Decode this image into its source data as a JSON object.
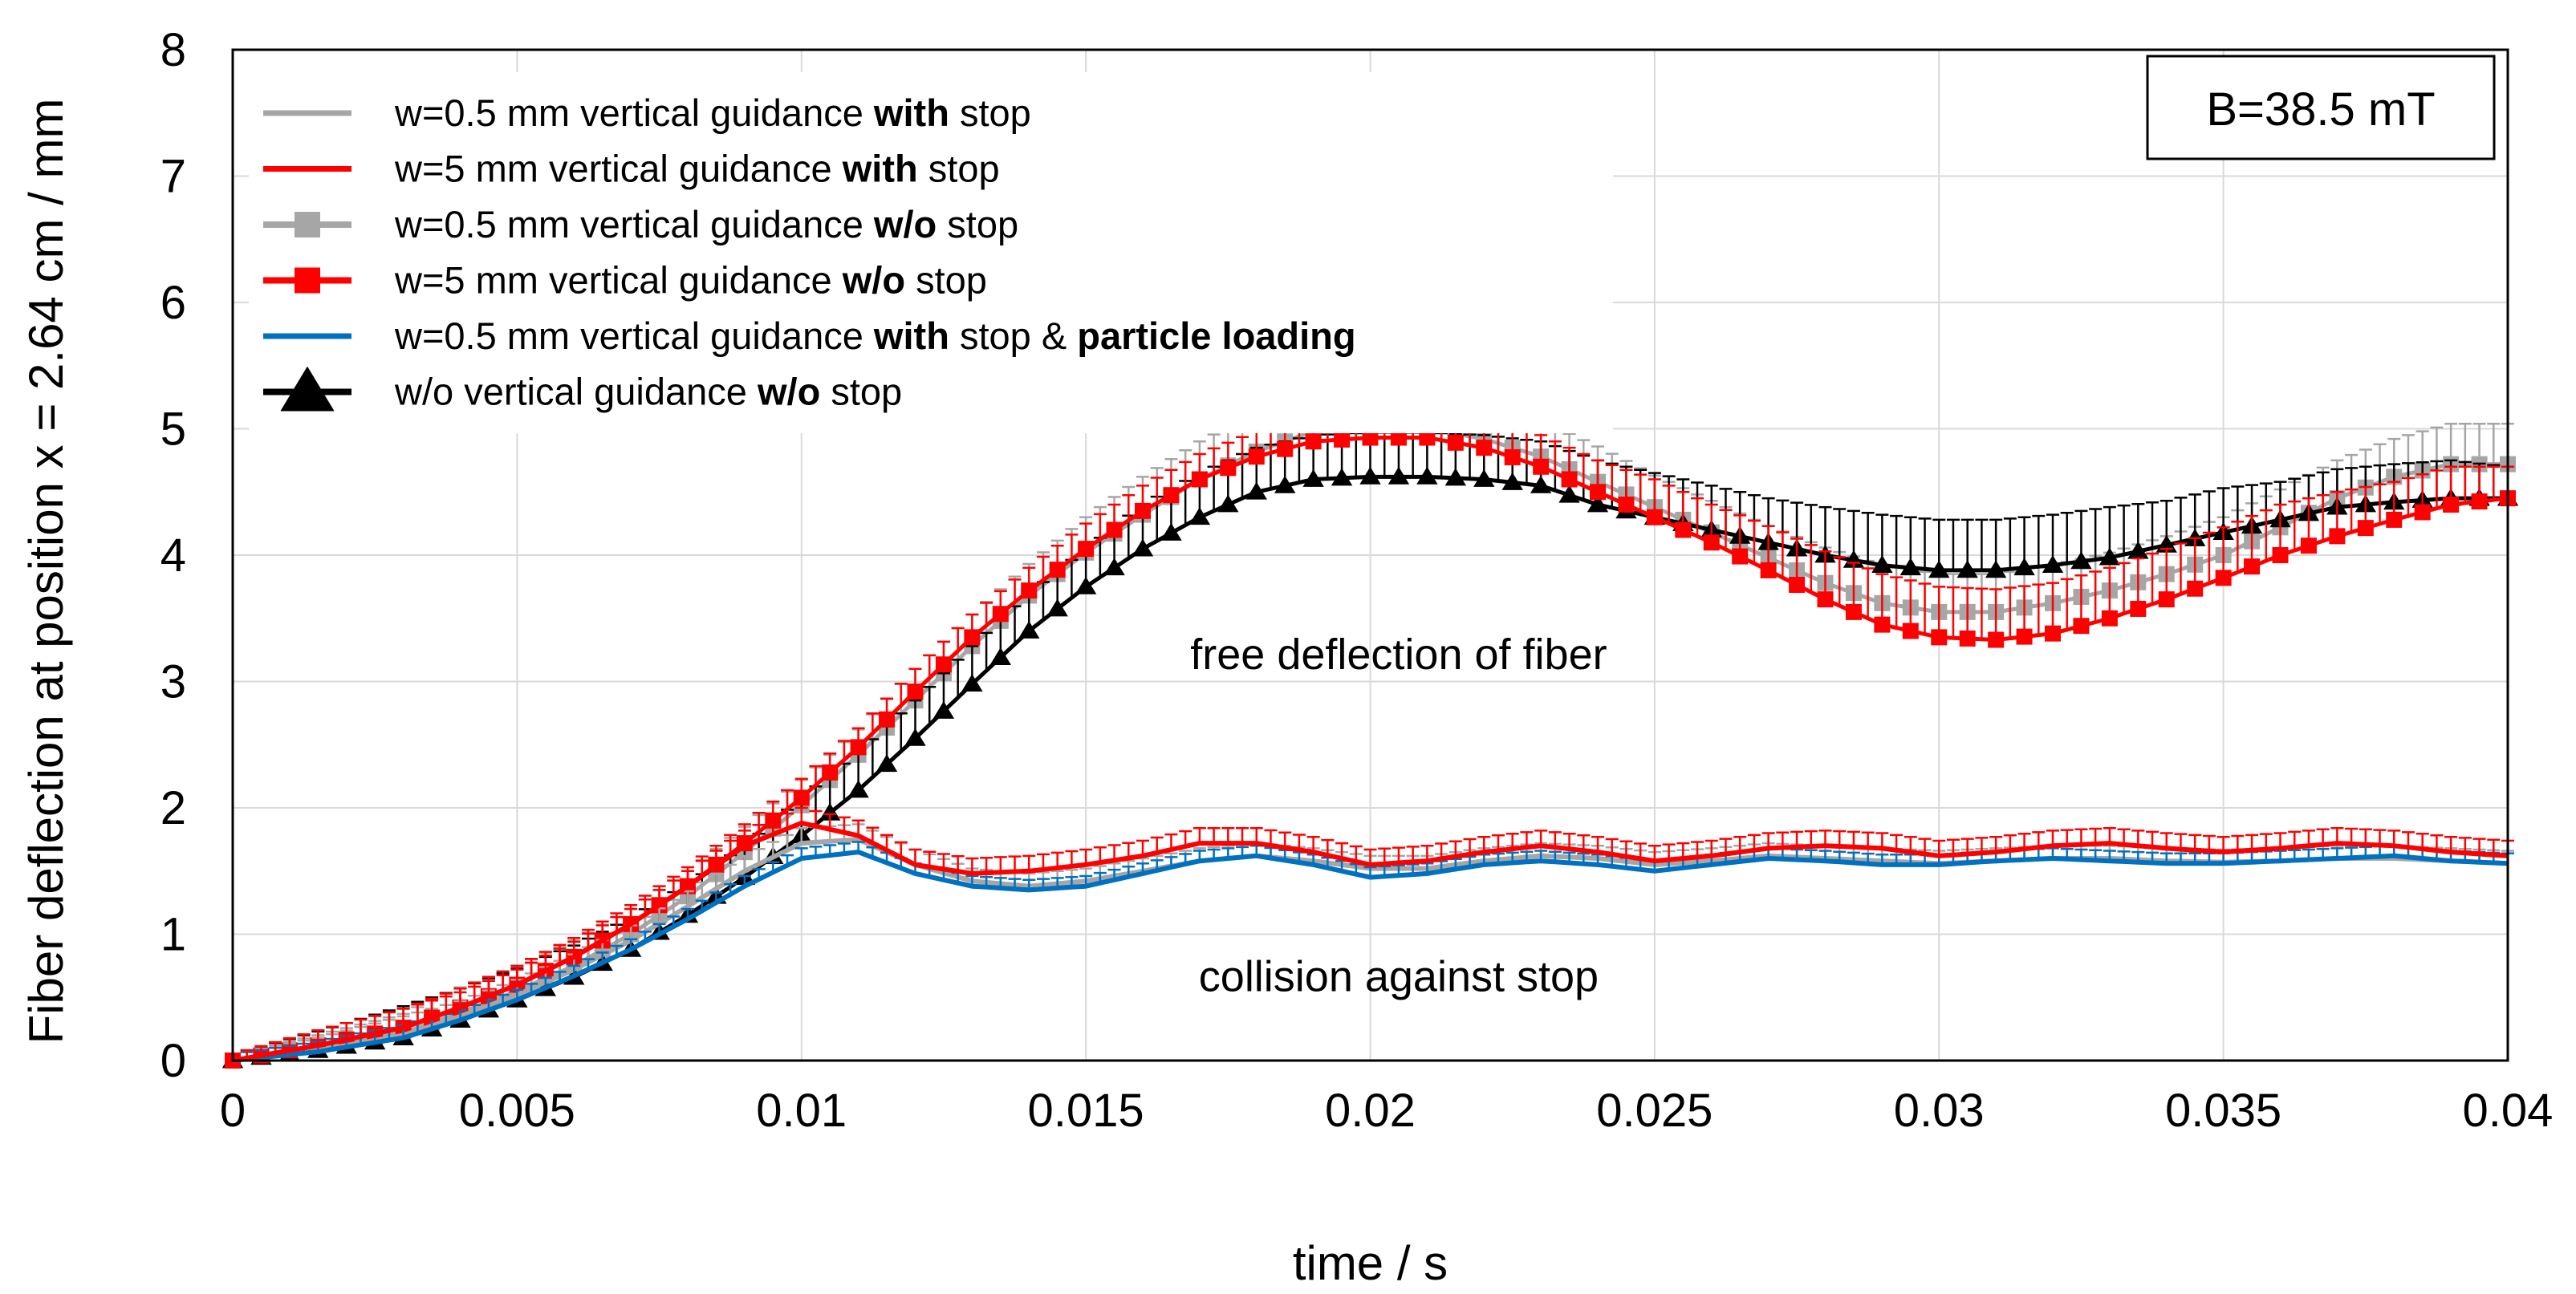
{
  "chart_data": {
    "type": "line",
    "title": "",
    "xlabel": "time / s",
    "ylabel": "Fiber deflection at position x = 2.64 cm / mm",
    "xlim": [
      0,
      0.04
    ],
    "ylim": [
      0,
      8
    ],
    "grid": true,
    "x_ticks": [
      "0",
      "0.005",
      "0.01",
      "0.015",
      "0.02",
      "0.025",
      "0.03",
      "0.035",
      "0.04"
    ],
    "y_ticks": [
      "0",
      "1",
      "2",
      "3",
      "4",
      "5",
      "6",
      "7",
      "8"
    ],
    "field_label": "B=38.5 mT",
    "annotations": [
      {
        "text": "free deflection of fiber",
        "x": 0.0205,
        "y": 3.1
      },
      {
        "text": "collision against stop",
        "x": 0.0205,
        "y": 0.55
      }
    ],
    "legend": {
      "position": "top-left",
      "entries": [
        {
          "series": "s1",
          "parts": [
            {
              "t": "w=0.5 mm vertical guidance ",
              "b": false
            },
            {
              "t": "with",
              "b": true
            },
            {
              "t": " stop",
              "b": false
            }
          ]
        },
        {
          "series": "s2",
          "parts": [
            {
              "t": "w=5 mm vertical guidance ",
              "b": false
            },
            {
              "t": "with",
              "b": true
            },
            {
              "t": " stop",
              "b": false
            }
          ]
        },
        {
          "series": "s3",
          "parts": [
            {
              "t": "w=0.5 mm vertical guidance ",
              "b": false
            },
            {
              "t": "w/o",
              "b": true
            },
            {
              "t": " stop",
              "b": false
            }
          ]
        },
        {
          "series": "s4",
          "parts": [
            {
              "t": "w=5 mm vertical guidance ",
              "b": false
            },
            {
              "t": "w/o",
              "b": true
            },
            {
              "t": " stop",
              "b": false
            }
          ]
        },
        {
          "series": "s5",
          "parts": [
            {
              "t": "w=0.5 mm vertical guidance ",
              "b": false
            },
            {
              "t": "with",
              "b": true
            },
            {
              "t": " stop & ",
              "b": false
            },
            {
              "t": "particle loading",
              "b": true
            }
          ]
        },
        {
          "series": "s6",
          "parts": [
            {
              "t": "w/o vertical guidance ",
              "b": false
            },
            {
              "t": "w/o",
              "b": true
            },
            {
              "t": " stop",
              "b": false
            }
          ]
        }
      ]
    },
    "series": [
      {
        "id": "s3",
        "name": "w=0.5 mm vertical guidance w/o stop",
        "color": "#a6a6a6",
        "marker": "square",
        "errorbars": true,
        "z": 1,
        "x": [
          0,
          0.0015,
          0.003,
          0.004,
          0.005,
          0.006,
          0.007,
          0.008,
          0.009,
          0.01,
          0.011,
          0.012,
          0.013,
          0.014,
          0.015,
          0.016,
          0.017,
          0.018,
          0.019,
          0.02,
          0.021,
          0.022,
          0.023,
          0.024,
          0.025,
          0.026,
          0.027,
          0.028,
          0.029,
          0.03,
          0.031,
          0.032,
          0.033,
          0.034,
          0.035,
          0.036,
          0.037,
          0.038,
          0.039,
          0.04
        ],
        "y": [
          0,
          0.1,
          0.22,
          0.38,
          0.55,
          0.75,
          1.0,
          1.3,
          1.65,
          2.02,
          2.42,
          2.85,
          3.28,
          3.68,
          4.02,
          4.32,
          4.6,
          4.82,
          4.98,
          5.02,
          5.0,
          4.92,
          4.78,
          4.58,
          4.38,
          4.18,
          3.98,
          3.78,
          3.62,
          3.55,
          3.55,
          3.62,
          3.72,
          3.85,
          4.0,
          4.22,
          4.45,
          4.62,
          4.72,
          4.72
        ],
        "err": [
          0.05,
          0.1,
          0.15,
          0.2,
          0.2,
          0.2,
          0.2,
          0.2,
          0.2,
          0.2,
          0.2,
          0.25,
          0.25,
          0.25,
          0.28,
          0.3,
          0.3,
          0.3,
          0.32,
          0.32,
          0.3,
          0.3,
          0.28,
          0.28,
          0.25,
          0.25,
          0.25,
          0.28,
          0.3,
          0.3,
          0.3,
          0.3,
          0.3,
          0.3,
          0.3,
          0.3,
          0.3,
          0.3,
          0.32,
          0.32
        ]
      },
      {
        "id": "s6",
        "name": "w/o vertical guidance w/o stop",
        "color": "#000000",
        "marker": "triangle",
        "errorbars": true,
        "z": 2,
        "x": [
          0,
          0.0015,
          0.003,
          0.004,
          0.005,
          0.006,
          0.007,
          0.008,
          0.009,
          0.01,
          0.011,
          0.012,
          0.013,
          0.014,
          0.015,
          0.016,
          0.017,
          0.018,
          0.019,
          0.02,
          0.021,
          0.022,
          0.023,
          0.024,
          0.025,
          0.026,
          0.027,
          0.028,
          0.029,
          0.03,
          0.031,
          0.032,
          0.033,
          0.034,
          0.035,
          0.036,
          0.037,
          0.038,
          0.039,
          0.04
        ],
        "y": [
          0,
          0.08,
          0.18,
          0.32,
          0.48,
          0.66,
          0.88,
          1.15,
          1.45,
          1.78,
          2.14,
          2.55,
          2.98,
          3.4,
          3.75,
          4.05,
          4.3,
          4.5,
          4.6,
          4.62,
          4.62,
          4.6,
          4.55,
          4.4,
          4.3,
          4.2,
          4.1,
          4.0,
          3.92,
          3.88,
          3.88,
          3.92,
          3.98,
          4.08,
          4.18,
          4.28,
          4.38,
          4.42,
          4.45,
          4.45
        ],
        "err": [
          0.05,
          0.15,
          0.25,
          0.25,
          0.25,
          0.25,
          0.25,
          0.25,
          0.25,
          0.3,
          0.3,
          0.3,
          0.3,
          0.3,
          0.3,
          0.35,
          0.35,
          0.35,
          0.35,
          0.35,
          0.35,
          0.35,
          0.35,
          0.35,
          0.35,
          0.35,
          0.35,
          0.38,
          0.4,
          0.4,
          0.4,
          0.4,
          0.4,
          0.35,
          0.35,
          0.3,
          0.3,
          0.3,
          0.3,
          0.25
        ]
      },
      {
        "id": "s4",
        "name": "w=5 mm vertical guidance w/o stop",
        "color": "#ff0000",
        "marker": "square",
        "errorbars": true,
        "z": 3,
        "x": [
          0,
          0.0015,
          0.003,
          0.004,
          0.005,
          0.006,
          0.007,
          0.008,
          0.009,
          0.01,
          0.011,
          0.012,
          0.013,
          0.014,
          0.015,
          0.016,
          0.017,
          0.018,
          0.019,
          0.02,
          0.021,
          0.022,
          0.023,
          0.024,
          0.025,
          0.026,
          0.027,
          0.028,
          0.029,
          0.03,
          0.031,
          0.032,
          0.033,
          0.034,
          0.035,
          0.036,
          0.037,
          0.038,
          0.039,
          0.04
        ],
        "y": [
          0,
          0.12,
          0.26,
          0.42,
          0.6,
          0.82,
          1.08,
          1.38,
          1.72,
          2.08,
          2.48,
          2.92,
          3.35,
          3.72,
          4.05,
          4.35,
          4.6,
          4.78,
          4.9,
          4.93,
          4.93,
          4.85,
          4.7,
          4.5,
          4.3,
          4.1,
          3.88,
          3.65,
          3.45,
          3.35,
          3.33,
          3.38,
          3.5,
          3.65,
          3.82,
          4.0,
          4.15,
          4.28,
          4.4,
          4.45
        ],
        "err": [
          0.05,
          0.12,
          0.15,
          0.15,
          0.15,
          0.15,
          0.15,
          0.15,
          0.15,
          0.15,
          0.15,
          0.18,
          0.18,
          0.18,
          0.2,
          0.2,
          0.2,
          0.2,
          0.2,
          0.2,
          0.2,
          0.2,
          0.25,
          0.25,
          0.3,
          0.3,
          0.35,
          0.38,
          0.4,
          0.4,
          0.4,
          0.4,
          0.4,
          0.4,
          0.4,
          0.4,
          0.35,
          0.3,
          0.3,
          0.25
        ]
      },
      {
        "id": "s1",
        "name": "w=0.5 mm vertical guidance with stop",
        "color": "#a6a6a6",
        "marker": "none",
        "errorbars": true,
        "z": 4,
        "x": [
          0,
          0.0015,
          0.003,
          0.004,
          0.005,
          0.006,
          0.007,
          0.008,
          0.009,
          0.01,
          0.011,
          0.012,
          0.013,
          0.014,
          0.015,
          0.016,
          0.017,
          0.018,
          0.019,
          0.02,
          0.021,
          0.022,
          0.023,
          0.024,
          0.025,
          0.026,
          0.027,
          0.028,
          0.029,
          0.03,
          0.031,
          0.032,
          0.033,
          0.034,
          0.035,
          0.036,
          0.037,
          0.038,
          0.039,
          0.04
        ],
        "y": [
          0,
          0.08,
          0.2,
          0.35,
          0.52,
          0.72,
          0.95,
          1.22,
          1.5,
          1.72,
          1.75,
          1.55,
          1.42,
          1.38,
          1.42,
          1.5,
          1.58,
          1.62,
          1.58,
          1.52,
          1.52,
          1.58,
          1.62,
          1.6,
          1.55,
          1.58,
          1.62,
          1.6,
          1.58,
          1.56,
          1.58,
          1.6,
          1.6,
          1.58,
          1.57,
          1.58,
          1.6,
          1.6,
          1.58,
          1.56
        ],
        "err": [
          0.05,
          0.1,
          0.15,
          0.12,
          0.12,
          0.12,
          0.12,
          0.12,
          0.12,
          0.12,
          0.12,
          0.12,
          0.1,
          0.1,
          0.1,
          0.1,
          0.1,
          0.1,
          0.1,
          0.1,
          0.1,
          0.1,
          0.1,
          0.1,
          0.1,
          0.1,
          0.1,
          0.1,
          0.1,
          0.1,
          0.1,
          0.1,
          0.1,
          0.1,
          0.1,
          0.1,
          0.1,
          0.1,
          0.1,
          0.1
        ]
      },
      {
        "id": "s5",
        "name": "w=0.5 mm vertical guidance with stop & particle loading",
        "color": "#0070c0",
        "marker": "none",
        "errorbars": true,
        "z": 5,
        "x": [
          0,
          0.0015,
          0.003,
          0.004,
          0.005,
          0.006,
          0.007,
          0.008,
          0.009,
          0.01,
          0.011,
          0.012,
          0.013,
          0.014,
          0.015,
          0.016,
          0.017,
          0.018,
          0.019,
          0.02,
          0.021,
          0.022,
          0.023,
          0.024,
          0.025,
          0.026,
          0.027,
          0.028,
          0.029,
          0.03,
          0.031,
          0.032,
          0.033,
          0.034,
          0.035,
          0.036,
          0.037,
          0.038,
          0.039,
          0.04
        ],
        "y": [
          0,
          0.07,
          0.18,
          0.32,
          0.48,
          0.67,
          0.88,
          1.12,
          1.38,
          1.6,
          1.65,
          1.48,
          1.38,
          1.35,
          1.38,
          1.48,
          1.58,
          1.62,
          1.55,
          1.45,
          1.48,
          1.55,
          1.58,
          1.55,
          1.5,
          1.55,
          1.6,
          1.58,
          1.55,
          1.55,
          1.58,
          1.6,
          1.58,
          1.56,
          1.56,
          1.58,
          1.6,
          1.62,
          1.58,
          1.56
        ],
        "err": [
          0.05,
          0.08,
          0.1,
          0.08,
          0.08,
          0.08,
          0.08,
          0.08,
          0.08,
          0.08,
          0.08,
          0.08,
          0.08,
          0.08,
          0.08,
          0.08,
          0.08,
          0.08,
          0.08,
          0.08,
          0.08,
          0.08,
          0.08,
          0.08,
          0.08,
          0.08,
          0.08,
          0.08,
          0.08,
          0.08,
          0.08,
          0.08,
          0.08,
          0.08,
          0.08,
          0.08,
          0.08,
          0.08,
          0.08,
          0.08
        ]
      },
      {
        "id": "s2",
        "name": "w=5 mm vertical guidance with stop",
        "color": "#ff0000",
        "marker": "none",
        "errorbars": true,
        "z": 6,
        "x": [
          0,
          0.0015,
          0.003,
          0.004,
          0.005,
          0.006,
          0.007,
          0.008,
          0.009,
          0.01,
          0.011,
          0.012,
          0.013,
          0.014,
          0.015,
          0.016,
          0.017,
          0.018,
          0.019,
          0.02,
          0.021,
          0.022,
          0.023,
          0.024,
          0.025,
          0.026,
          0.027,
          0.028,
          0.029,
          0.03,
          0.031,
          0.032,
          0.033,
          0.034,
          0.035,
          0.036,
          0.037,
          0.038,
          0.039,
          0.04
        ],
        "y": [
          0,
          0.12,
          0.26,
          0.42,
          0.6,
          0.82,
          1.08,
          1.38,
          1.7,
          1.88,
          1.78,
          1.55,
          1.48,
          1.5,
          1.55,
          1.62,
          1.72,
          1.72,
          1.65,
          1.55,
          1.58,
          1.65,
          1.7,
          1.65,
          1.58,
          1.62,
          1.68,
          1.7,
          1.68,
          1.62,
          1.65,
          1.7,
          1.72,
          1.68,
          1.65,
          1.68,
          1.72,
          1.7,
          1.65,
          1.62
        ],
        "err": [
          0.05,
          0.12,
          0.15,
          0.12,
          0.12,
          0.12,
          0.12,
          0.12,
          0.12,
          0.12,
          0.12,
          0.12,
          0.12,
          0.12,
          0.12,
          0.12,
          0.12,
          0.12,
          0.12,
          0.12,
          0.12,
          0.12,
          0.12,
          0.12,
          0.12,
          0.12,
          0.12,
          0.12,
          0.12,
          0.12,
          0.12,
          0.12,
          0.12,
          0.12,
          0.12,
          0.12,
          0.12,
          0.12,
          0.12,
          0.12
        ]
      }
    ]
  }
}
